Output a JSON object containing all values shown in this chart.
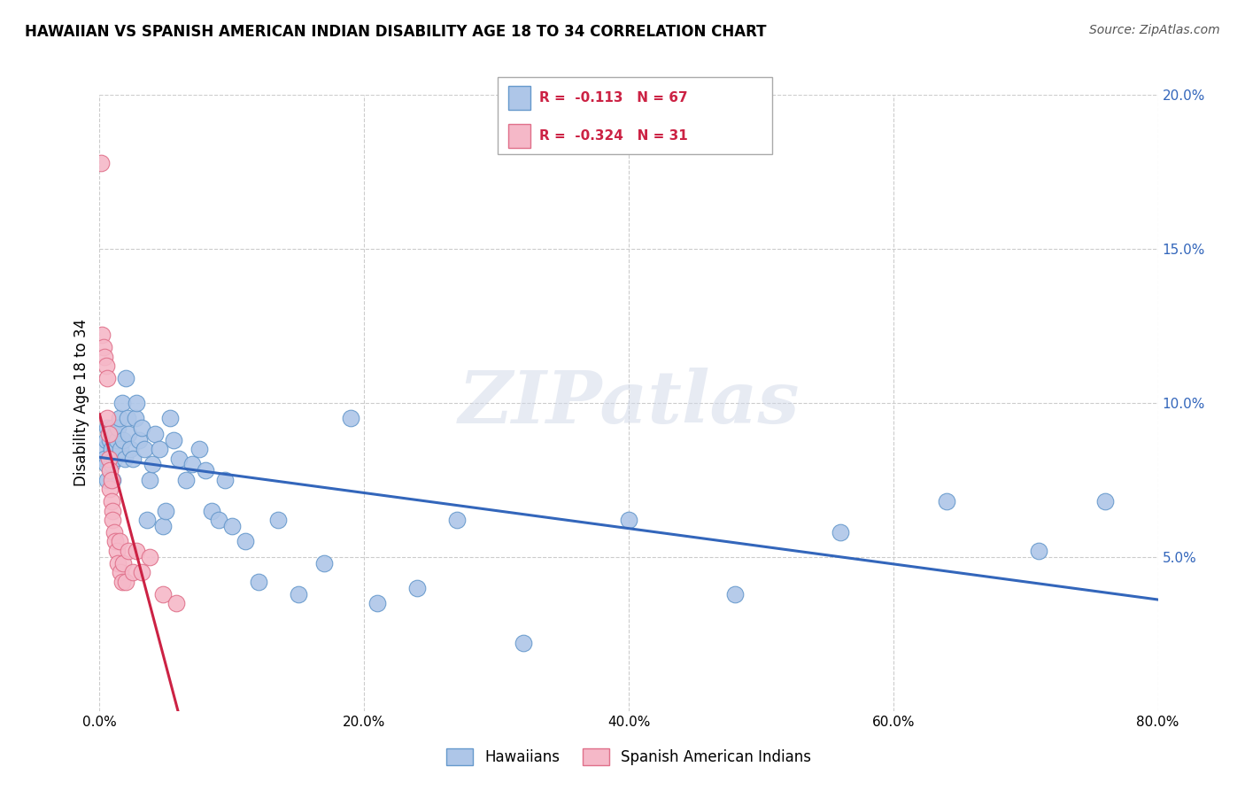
{
  "title": "HAWAIIAN VS SPANISH AMERICAN INDIAN DISABILITY AGE 18 TO 34 CORRELATION CHART",
  "source": "Source: ZipAtlas.com",
  "ylabel": "Disability Age 18 to 34",
  "watermark": "ZIPatlas",
  "hawaiians_R": "-0.113",
  "hawaiians_N": "67",
  "spanish_R": "-0.324",
  "spanish_N": "31",
  "xlim": [
    0.0,
    0.8
  ],
  "ylim": [
    0.0,
    0.2
  ],
  "xticks": [
    0.0,
    0.2,
    0.4,
    0.6,
    0.8
  ],
  "yticks_right": [
    0.05,
    0.1,
    0.15,
    0.2
  ],
  "background_color": "#ffffff",
  "grid_color": "#cccccc",
  "hawaiians_color": "#aec6e8",
  "hawaiians_edge": "#6699cc",
  "spanish_color": "#f5b8c8",
  "spanish_edge": "#e0708a",
  "trend_hawaiians_color": "#3366bb",
  "trend_spanish_solid": "#cc2244",
  "trend_spanish_dash": "#ddaacc",
  "hawaiians_x": [
    0.003,
    0.004,
    0.005,
    0.005,
    0.006,
    0.006,
    0.007,
    0.008,
    0.008,
    0.009,
    0.009,
    0.01,
    0.01,
    0.011,
    0.012,
    0.012,
    0.013,
    0.014,
    0.015,
    0.016,
    0.017,
    0.018,
    0.019,
    0.02,
    0.021,
    0.022,
    0.023,
    0.025,
    0.027,
    0.028,
    0.03,
    0.032,
    0.034,
    0.036,
    0.038,
    0.04,
    0.042,
    0.045,
    0.048,
    0.05,
    0.053,
    0.056,
    0.06,
    0.065,
    0.07,
    0.075,
    0.08,
    0.085,
    0.09,
    0.095,
    0.1,
    0.11,
    0.12,
    0.135,
    0.15,
    0.17,
    0.19,
    0.21,
    0.24,
    0.27,
    0.32,
    0.4,
    0.48,
    0.56,
    0.64,
    0.71,
    0.76
  ],
  "hawaiians_y": [
    0.085,
    0.082,
    0.088,
    0.08,
    0.075,
    0.092,
    0.09,
    0.082,
    0.088,
    0.08,
    0.085,
    0.075,
    0.092,
    0.082,
    0.09,
    0.085,
    0.088,
    0.092,
    0.095,
    0.085,
    0.1,
    0.088,
    0.082,
    0.108,
    0.095,
    0.09,
    0.085,
    0.082,
    0.095,
    0.1,
    0.088,
    0.092,
    0.085,
    0.062,
    0.075,
    0.08,
    0.09,
    0.085,
    0.06,
    0.065,
    0.095,
    0.088,
    0.082,
    0.075,
    0.08,
    0.085,
    0.078,
    0.065,
    0.062,
    0.075,
    0.06,
    0.055,
    0.042,
    0.062,
    0.038,
    0.048,
    0.095,
    0.035,
    0.04,
    0.062,
    0.022,
    0.062,
    0.038,
    0.058,
    0.068,
    0.052,
    0.068
  ],
  "spanish_x": [
    0.001,
    0.002,
    0.003,
    0.004,
    0.005,
    0.006,
    0.006,
    0.007,
    0.007,
    0.008,
    0.008,
    0.009,
    0.009,
    0.01,
    0.01,
    0.011,
    0.012,
    0.013,
    0.014,
    0.015,
    0.016,
    0.017,
    0.018,
    0.02,
    0.022,
    0.025,
    0.028,
    0.032,
    0.038,
    0.048,
    0.058
  ],
  "spanish_y": [
    0.178,
    0.122,
    0.118,
    0.115,
    0.112,
    0.108,
    0.095,
    0.09,
    0.082,
    0.078,
    0.072,
    0.068,
    0.075,
    0.065,
    0.062,
    0.058,
    0.055,
    0.052,
    0.048,
    0.055,
    0.045,
    0.042,
    0.048,
    0.042,
    0.052,
    0.045,
    0.052,
    0.045,
    0.05,
    0.038,
    0.035
  ],
  "legend_text_color": "#cc2244",
  "legend_N_color": "#cc2244"
}
